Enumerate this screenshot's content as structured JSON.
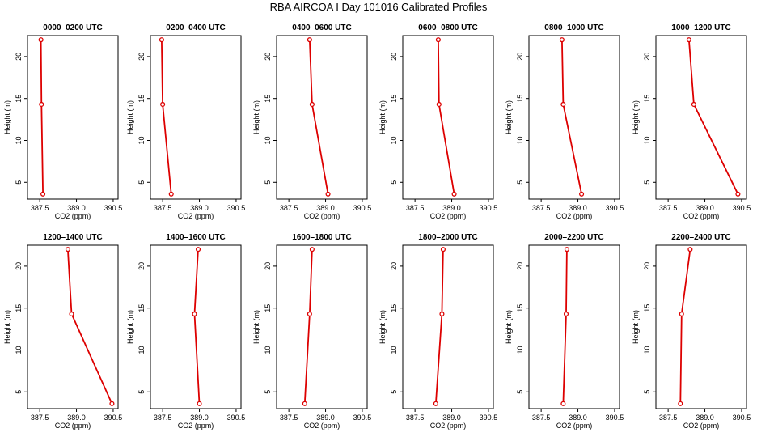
{
  "figure": {
    "title": "RBA AIRCOA I  Day 101016  Calibrated Profiles"
  },
  "colors": {
    "series": "#dd0000",
    "axes": "#000000"
  },
  "chart_data": [
    {
      "type": "line",
      "title": "0000–0200 UTC",
      "xlabel": "CO2 (ppm)",
      "ylabel": "Height (m)",
      "xlim": [
        387.0,
        390.7
      ],
      "ylim": [
        3,
        22.5
      ],
      "xticks": [
        "387.5",
        "389.0",
        "390.5"
      ],
      "yticks": [
        "5",
        "10",
        "15",
        "20"
      ],
      "grid": false,
      "points": [
        {
          "x": 387.55,
          "y": 22
        },
        {
          "x": 387.57,
          "y": 14.3
        },
        {
          "x": 387.63,
          "y": 3.6
        }
      ]
    },
    {
      "type": "line",
      "title": "0200–0400 UTC",
      "xlabel": "CO2 (ppm)",
      "ylabel": "Height (m)",
      "xlim": [
        387.0,
        390.7
      ],
      "ylim": [
        3,
        22.5
      ],
      "xticks": [
        "387.5",
        "389.0",
        "390.5"
      ],
      "yticks": [
        "5",
        "10",
        "15",
        "20"
      ],
      "grid": false,
      "points": [
        {
          "x": 387.46,
          "y": 22
        },
        {
          "x": 387.5,
          "y": 14.3
        },
        {
          "x": 387.85,
          "y": 3.6
        }
      ]
    },
    {
      "type": "line",
      "title": "0400–0600 UTC",
      "xlabel": "CO2 (ppm)",
      "ylabel": "Height (m)",
      "xlim": [
        387.0,
        390.7
      ],
      "ylim": [
        3,
        22.5
      ],
      "xticks": [
        "387.5",
        "389.0",
        "390.5"
      ],
      "yticks": [
        "5",
        "10",
        "15",
        "20"
      ],
      "grid": false,
      "points": [
        {
          "x": 388.35,
          "y": 22
        },
        {
          "x": 388.45,
          "y": 14.3
        },
        {
          "x": 389.1,
          "y": 3.6
        }
      ]
    },
    {
      "type": "line",
      "title": "0600–0800 UTC",
      "xlabel": "CO2 (ppm)",
      "ylabel": "Height (m)",
      "xlim": [
        387.0,
        390.7
      ],
      "ylim": [
        3,
        22.5
      ],
      "xticks": [
        "387.5",
        "389.0",
        "390.5"
      ],
      "yticks": [
        "5",
        "10",
        "15",
        "20"
      ],
      "grid": false,
      "points": [
        {
          "x": 388.45,
          "y": 22
        },
        {
          "x": 388.48,
          "y": 14.3
        },
        {
          "x": 389.1,
          "y": 3.6
        }
      ]
    },
    {
      "type": "line",
      "title": "0800–1000 UTC",
      "xlabel": "CO2 (ppm)",
      "ylabel": "Height (m)",
      "xlim": [
        387.0,
        390.7
      ],
      "ylim": [
        3,
        22.5
      ],
      "xticks": [
        "387.5",
        "389.0",
        "390.5"
      ],
      "yticks": [
        "5",
        "10",
        "15",
        "20"
      ],
      "grid": false,
      "points": [
        {
          "x": 388.35,
          "y": 22
        },
        {
          "x": 388.4,
          "y": 14.3
        },
        {
          "x": 389.15,
          "y": 3.6
        }
      ]
    },
    {
      "type": "line",
      "title": "1000–1200 UTC",
      "xlabel": "CO2 (ppm)",
      "ylabel": "Height (m)",
      "xlim": [
        387.0,
        390.7
      ],
      "ylim": [
        3,
        22.5
      ],
      "xticks": [
        "387.5",
        "389.0",
        "390.5"
      ],
      "yticks": [
        "5",
        "10",
        "15",
        "20"
      ],
      "grid": false,
      "points": [
        {
          "x": 388.35,
          "y": 22
        },
        {
          "x": 388.55,
          "y": 14.3
        },
        {
          "x": 390.35,
          "y": 3.6
        }
      ]
    },
    {
      "type": "line",
      "title": "1200–1400 UTC",
      "xlabel": "CO2 (ppm)",
      "ylabel": "Height (m)",
      "xlim": [
        387.0,
        390.7
      ],
      "ylim": [
        3,
        22.5
      ],
      "xticks": [
        "387.5",
        "389.0",
        "390.5"
      ],
      "yticks": [
        "5",
        "10",
        "15",
        "20"
      ],
      "grid": false,
      "points": [
        {
          "x": 388.65,
          "y": 22
        },
        {
          "x": 388.8,
          "y": 14.3
        },
        {
          "x": 390.45,
          "y": 3.6
        }
      ]
    },
    {
      "type": "line",
      "title": "1400–1600 UTC",
      "xlabel": "CO2 (ppm)",
      "ylabel": "Height (m)",
      "xlim": [
        387.0,
        390.7
      ],
      "ylim": [
        3,
        22.5
      ],
      "xticks": [
        "387.5",
        "389.0",
        "390.5"
      ],
      "yticks": [
        "5",
        "10",
        "15",
        "20"
      ],
      "grid": false,
      "points": [
        {
          "x": 388.95,
          "y": 22
        },
        {
          "x": 388.8,
          "y": 14.3
        },
        {
          "x": 389.0,
          "y": 3.6
        }
      ]
    },
    {
      "type": "line",
      "title": "1600–1800 UTC",
      "xlabel": "CO2 (ppm)",
      "ylabel": "Height (m)",
      "xlim": [
        387.0,
        390.7
      ],
      "ylim": [
        3,
        22.5
      ],
      "xticks": [
        "387.5",
        "389.0",
        "390.5"
      ],
      "yticks": [
        "5",
        "10",
        "15",
        "20"
      ],
      "grid": false,
      "points": [
        {
          "x": 388.45,
          "y": 22
        },
        {
          "x": 388.35,
          "y": 14.3
        },
        {
          "x": 388.15,
          "y": 3.6
        }
      ]
    },
    {
      "type": "line",
      "title": "1800–2000 UTC",
      "xlabel": "CO2 (ppm)",
      "ylabel": "Height (m)",
      "xlim": [
        387.0,
        390.7
      ],
      "ylim": [
        3,
        22.5
      ],
      "xticks": [
        "387.5",
        "389.0",
        "390.5"
      ],
      "yticks": [
        "5",
        "10",
        "15",
        "20"
      ],
      "grid": false,
      "points": [
        {
          "x": 388.65,
          "y": 22
        },
        {
          "x": 388.6,
          "y": 14.3
        },
        {
          "x": 388.35,
          "y": 3.6
        }
      ]
    },
    {
      "type": "line",
      "title": "2000–2200 UTC",
      "xlabel": "CO2 (ppm)",
      "ylabel": "Height (m)",
      "xlim": [
        387.0,
        390.7
      ],
      "ylim": [
        3,
        22.5
      ],
      "xticks": [
        "387.5",
        "389.0",
        "390.5"
      ],
      "yticks": [
        "5",
        "10",
        "15",
        "20"
      ],
      "grid": false,
      "points": [
        {
          "x": 388.55,
          "y": 22
        },
        {
          "x": 388.52,
          "y": 14.3
        },
        {
          "x": 388.4,
          "y": 3.6
        }
      ]
    },
    {
      "type": "line",
      "title": "2200–2400 UTC",
      "xlabel": "CO2 (ppm)",
      "ylabel": "Height (m)",
      "xlim": [
        387.0,
        390.7
      ],
      "ylim": [
        3,
        22.5
      ],
      "xticks": [
        "387.5",
        "389.0",
        "390.5"
      ],
      "yticks": [
        "5",
        "10",
        "15",
        "20"
      ],
      "grid": false,
      "points": [
        {
          "x": 388.4,
          "y": 22
        },
        {
          "x": 388.05,
          "y": 14.3
        },
        {
          "x": 388.0,
          "y": 3.6
        }
      ]
    }
  ]
}
